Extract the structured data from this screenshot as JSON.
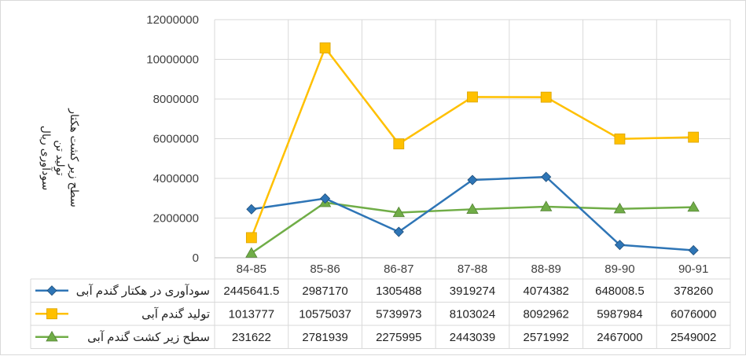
{
  "chart_data": {
    "type": "line",
    "categories": [
      "84-85",
      "85-86",
      "86-87",
      "87-88",
      "88-89",
      "89-90",
      "90-91"
    ],
    "series": [
      {
        "name": "سودآوری در هکتار گندم آبی",
        "color": "#2E75B6",
        "marker": "diamond",
        "values": [
          2445641.5,
          2987170,
          1305488,
          3919274,
          4074382,
          648008.5,
          378260
        ],
        "labels": [
          "2445641.5",
          "2987170",
          "1305488",
          "3919274",
          "4074382",
          "648008.5",
          "378260"
        ]
      },
      {
        "name": "تولید گندم آبی",
        "color": "#FFC000",
        "marker": "square",
        "values": [
          1013777,
          10575037,
          5739973,
          8103024,
          8092962,
          5987984,
          6076000
        ],
        "labels": [
          "1013777",
          "10575037",
          "5739973",
          "8103024",
          "8092962",
          "5987984",
          "6076000"
        ]
      },
      {
        "name": "سطح زیر کشت گندم آبی",
        "color": "#70AD47",
        "marker": "triangle",
        "values": [
          231622,
          2781939,
          2275995,
          2443039,
          2571992,
          2467000,
          2549002
        ],
        "labels": [
          "231622",
          "2781939",
          "2275995",
          "2443039",
          "2571992",
          "2467000",
          "2549002"
        ]
      }
    ],
    "ylim": [
      0,
      12000000
    ],
    "yticks": [
      "0",
      "2000000",
      "4000000",
      "6000000",
      "8000000",
      "10000000",
      "12000000"
    ],
    "ylabel_lines": [
      "سودآوری ریال",
      "تولید تن",
      "سطح زیر کشت هکتار"
    ],
    "grid": true,
    "legend": "data-table"
  }
}
